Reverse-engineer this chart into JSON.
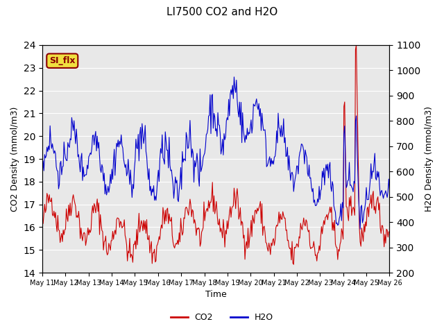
{
  "title": "LI7500 CO2 and H2O",
  "xlabel": "Time",
  "ylabel_left": "CO2 Density (mmol/m3)",
  "ylabel_right": "H2O Density (mmol/m3)",
  "ylim_left": [
    14.0,
    24.0
  ],
  "ylim_right": [
    200,
    1100
  ],
  "annotation_text": "SI_flx",
  "annotation_bg": "#f0e040",
  "annotation_border": "#8b0000",
  "co2_color": "#cc0000",
  "h2o_color": "#0000cc",
  "background_color": "#e8e8e8",
  "xtick_labels": [
    "May 11",
    "May 12",
    "May 13",
    "May 14",
    "May 15",
    "May 16",
    "May 17",
    "May 18",
    "May 19",
    "May 20",
    "May 21",
    "May 22",
    "May 23",
    "May 24",
    "May 25",
    "May 26"
  ],
  "legend_co2": "CO2",
  "legend_h2o": "H2O"
}
